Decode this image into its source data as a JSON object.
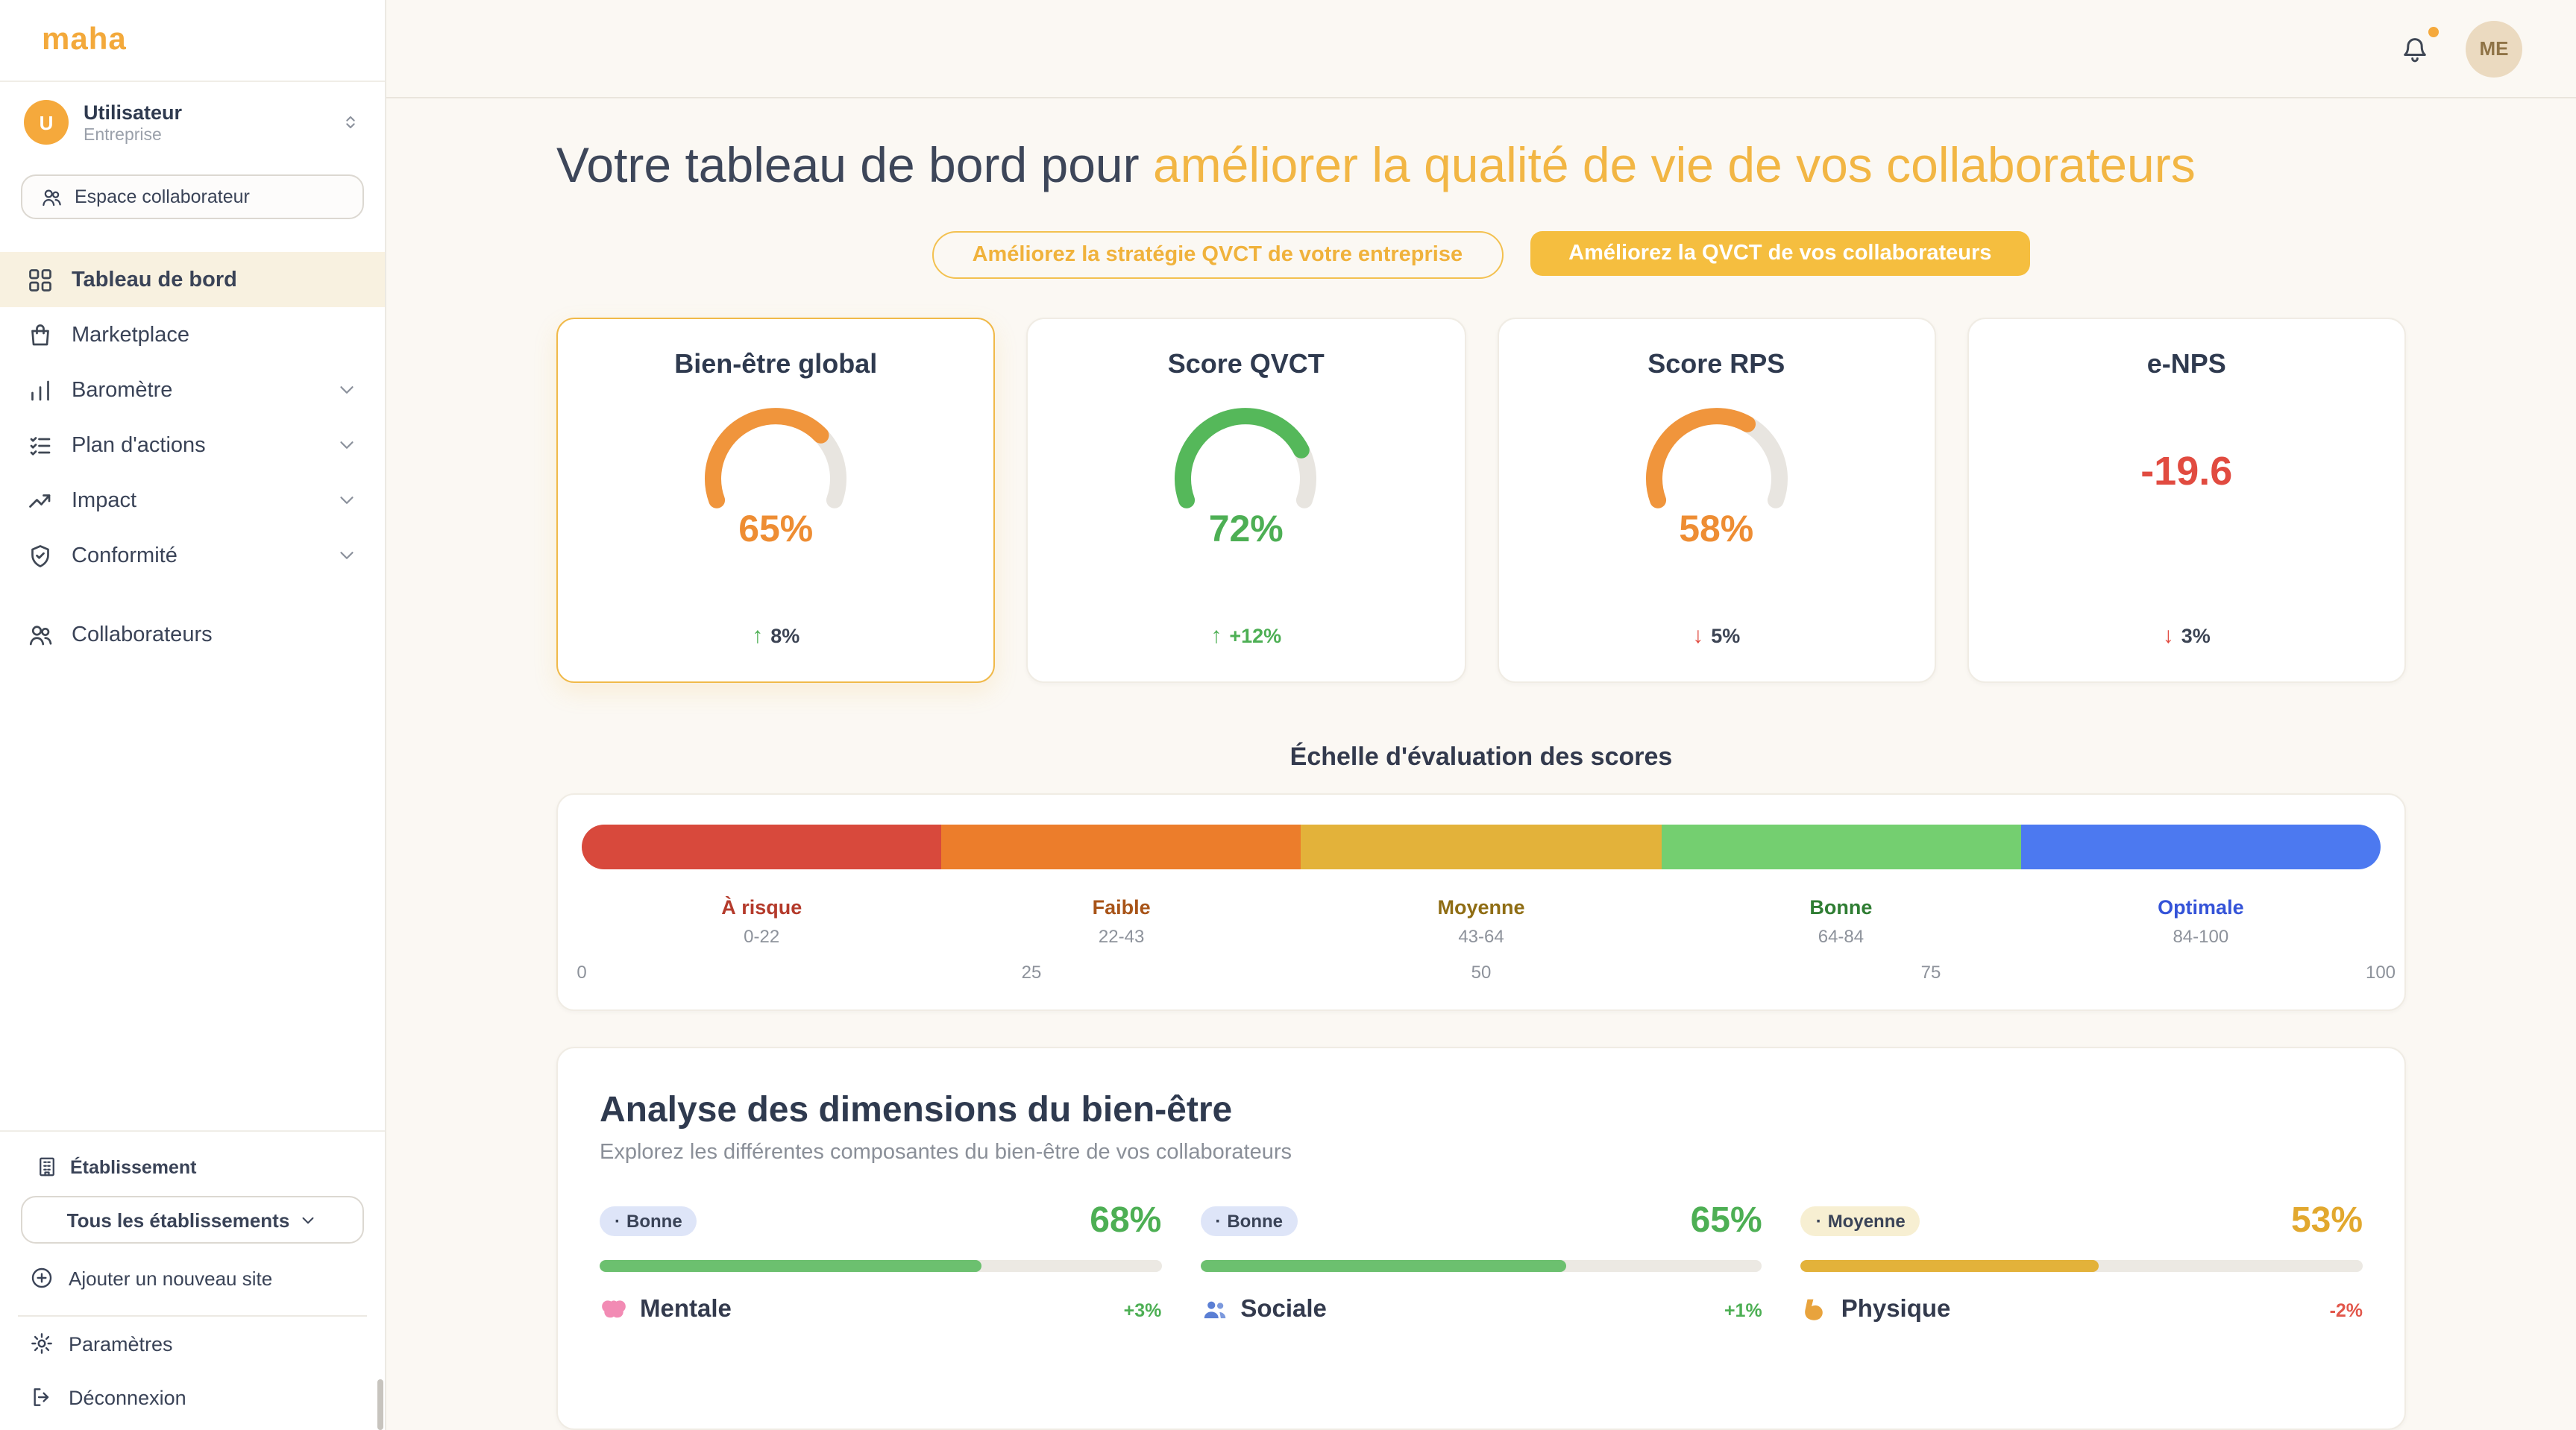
{
  "brand": {
    "logo": "maha"
  },
  "sidebar": {
    "user": {
      "initial": "U",
      "name": "Utilisateur",
      "role": "Entreprise"
    },
    "espace_button": {
      "label": "Espace collaborateur"
    },
    "nav": [
      {
        "label": "Tableau de bord"
      },
      {
        "label": "Marketplace"
      },
      {
        "label": "Baromètre"
      },
      {
        "label": "Plan d'actions"
      },
      {
        "label": "Impact"
      },
      {
        "label": "Conformité"
      },
      {
        "label": "Collaborateurs"
      }
    ],
    "establishment": {
      "section_label": "Établissement",
      "selector_value": "Tous les établissements",
      "add_site_label": "Ajouter un nouveau site"
    },
    "settings_label": "Paramètres",
    "logout_label": "Déconnexion"
  },
  "topbar": {
    "avatar_initials": "ME"
  },
  "hero": {
    "title_prefix": "Votre tableau de bord pour ",
    "title_accent": "améliorer la qualité de vie de vos collaborateurs",
    "cta_outline": "Améliorez la stratégie QVCT de votre entreprise",
    "cta_filled": "Améliorez la QVCT de vos collaborateurs"
  },
  "colors": {
    "accent": "#F2B644",
    "green": "#4DAF54",
    "orange": "#EE8D33",
    "red": "#E14B40"
  },
  "scores": [
    {
      "title": "Bien-être global",
      "value": "65%",
      "pct": 65,
      "gauge_color": "#F0953C",
      "value_color": "#EE8D33",
      "trend_arrow": "↑",
      "trend_text": "8%",
      "trend_arrow_color": "#4DAF54",
      "trend_text_color": "#3C4454"
    },
    {
      "title": "Score QVCT",
      "value": "72%",
      "pct": 72,
      "gauge_color": "#55B85A",
      "value_color": "#4DAF54",
      "trend_arrow": "↑",
      "trend_text": "+12%",
      "trend_arrow_color": "#4DAF54",
      "trend_text_color": "#4DAF54"
    },
    {
      "title": "Score RPS",
      "value": "58%",
      "pct": 58,
      "gauge_color": "#F0953C",
      "value_color": "#EE8D33",
      "trend_arrow": "↓",
      "trend_text": "5%",
      "trend_arrow_color": "#E14B40",
      "trend_text_color": "#3C4454"
    },
    {
      "title": "e-NPS",
      "value": "-19.6",
      "value_color": "#E14B40",
      "trend_arrow": "↓",
      "trend_text": "3%",
      "trend_arrow_color": "#E14B40",
      "trend_text_color": "#3C4454"
    }
  ],
  "scale": {
    "title": "Échelle d'évaluation des scores",
    "segments": [
      {
        "label": "À risque",
        "range": "0-22",
        "bar_color": "#D8493C",
        "label_color": "#B43A2B"
      },
      {
        "label": "Faible",
        "range": "22-43",
        "bar_color": "#EC7D2B",
        "label_color": "#A85418"
      },
      {
        "label": "Moyenne",
        "range": "43-64",
        "bar_color": "#E3B23A",
        "label_color": "#8F6D14"
      },
      {
        "label": "Bonne",
        "range": "64-84",
        "bar_color": "#74CF70",
        "label_color": "#2F7D33"
      },
      {
        "label": "Optimale",
        "range": "84-100",
        "bar_color": "#4C79F0",
        "label_color": "#3453D8"
      }
    ],
    "ticks": [
      {
        "label": "0",
        "pos": 0
      },
      {
        "label": "25",
        "pos": 25
      },
      {
        "label": "50",
        "pos": 50
      },
      {
        "label": "75",
        "pos": 75
      },
      {
        "label": "100",
        "pos": 100
      }
    ]
  },
  "dimensions": {
    "title": "Analyse des dimensions du bien-être",
    "subtitle": "Explorez les différentes composantes du bien-être de vos collaborateurs",
    "items": [
      {
        "badge": "Bonne",
        "badge_bg": "#DEE5F8",
        "value": "68%",
        "pct": 68,
        "bar_color": "#6CC06F",
        "value_color": "#4DAF54",
        "label": "Mentale",
        "delta": "+3%",
        "delta_color": "#4DAF54"
      },
      {
        "badge": "Bonne",
        "badge_bg": "#DEE5F8",
        "value": "65%",
        "pct": 65,
        "bar_color": "#6CC06F",
        "value_color": "#4DAF54",
        "label": "Sociale",
        "delta": "+1%",
        "delta_color": "#4DAF54"
      },
      {
        "badge": "Moyenne",
        "badge_bg": "#F7EFD2",
        "value": "53%",
        "pct": 53,
        "bar_color": "#E3B23A",
        "value_color": "#E2A82E",
        "label": "Physique",
        "delta": "-2%",
        "delta_color": "#E2574B"
      }
    ]
  }
}
